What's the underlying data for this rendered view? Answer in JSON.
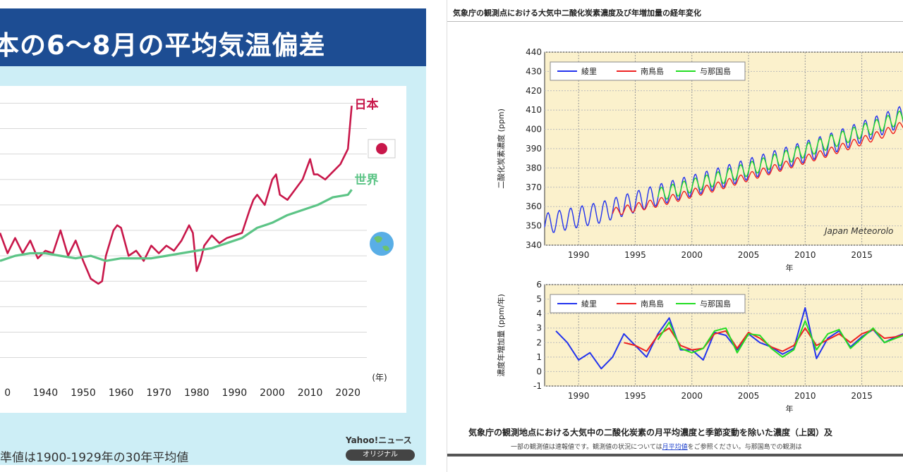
{
  "left": {
    "title": "本の6〜8月の平均気温偏差",
    "footnote": "準値は1900-1929年の30年平均値",
    "logo": "Yahoo!ニュース",
    "badge": "オリジナル",
    "colors": {
      "header_bg": "#1d4d93",
      "panel_bg": "#cdeef6",
      "japan": "#c8174a",
      "world": "#5cc486"
    }
  },
  "right": {
    "title": "気象庁の観測点における大気中二酸化炭素濃度及び年増加量の経年変化",
    "caption": "気象庁の観測地点における大気中の二酸化炭素の月平均濃度と季節変動を除いた濃度（上図）及",
    "note_before": "一部の観測値は速報値です。観測値の状況については",
    "note_link": "月平均値",
    "note_after": "をご参照ください。与那国島での観測は",
    "colors": {
      "plot_bg": "#fbf1cc",
      "ryori": "#2233ee",
      "minamitorishima": "#ee2222",
      "yonagunijima": "#22dd22"
    }
  },
  "chart_data": [
    {
      "type": "line",
      "title": "本の6〜8月の平均気温偏差",
      "xlabel": "(年)",
      "ylabel": "",
      "xlim": [
        1928,
        2025
      ],
      "ylim": [
        -2.2,
        3.2
      ],
      "xticks": [
        "0",
        "1940",
        "1950",
        "1960",
        "1970",
        "1980",
        "1990",
        "2000",
        "2010",
        "2020"
      ],
      "grid": true,
      "legend_position": "right",
      "series": [
        {
          "name": "日本",
          "x": [
            1928,
            1930,
            1932,
            1934,
            1936,
            1938,
            1940,
            1942,
            1944,
            1946,
            1948,
            1950,
            1952,
            1954,
            1955,
            1956,
            1958,
            1959,
            1960,
            1962,
            1964,
            1966,
            1968,
            1970,
            1972,
            1974,
            1976,
            1978,
            1979,
            1980,
            1981,
            1982,
            1984,
            1986,
            1988,
            1990,
            1992,
            1994,
            1995,
            1996,
            1998,
            2000,
            2001,
            2002,
            2004,
            2006,
            2008,
            2010,
            2011,
            2012,
            2014,
            2016,
            2018,
            2020,
            2021
          ],
          "y": [
            0.45,
            0.05,
            0.35,
            0.05,
            0.3,
            -0.05,
            0.1,
            0.05,
            0.5,
            0.0,
            0.3,
            -0.1,
            -0.45,
            -0.55,
            -0.5,
            0.0,
            0.5,
            0.6,
            0.55,
            0.0,
            0.1,
            -0.1,
            0.2,
            0.05,
            0.2,
            0.1,
            0.3,
            0.6,
            0.45,
            -0.3,
            -0.1,
            0.2,
            0.4,
            0.25,
            0.35,
            0.4,
            0.45,
            0.9,
            1.1,
            1.2,
            1.0,
            1.5,
            1.6,
            1.2,
            1.1,
            1.3,
            1.5,
            1.9,
            1.6,
            1.6,
            1.5,
            1.65,
            1.8,
            2.1,
            2.95
          ]
        },
        {
          "name": "世界",
          "x": [
            1928,
            1932,
            1936,
            1940,
            1944,
            1948,
            1952,
            1956,
            1960,
            1964,
            1968,
            1972,
            1976,
            1980,
            1984,
            1988,
            1992,
            1996,
            2000,
            2004,
            2008,
            2012,
            2016,
            2020,
            2021
          ],
          "y": [
            -0.1,
            0.0,
            0.05,
            0.05,
            0.0,
            -0.05,
            0.0,
            -0.1,
            -0.05,
            -0.05,
            -0.05,
            0.0,
            0.05,
            0.1,
            0.15,
            0.25,
            0.35,
            0.55,
            0.65,
            0.8,
            0.9,
            1.0,
            1.15,
            1.2,
            1.3
          ]
        }
      ]
    },
    {
      "type": "line",
      "title": "",
      "ylabel": "二酸化炭素濃度 (ppm)",
      "xlabel": "年",
      "xlim": [
        1987,
        2022
      ],
      "ylim": [
        340,
        440
      ],
      "yticks": [
        340,
        350,
        360,
        370,
        380,
        390,
        400,
        410,
        420,
        430,
        440
      ],
      "xticks": [
        1990,
        1995,
        2000,
        2005,
        2010,
        2015
      ],
      "grid": true,
      "legend_position": "top-left",
      "annotation": "Japan Meteorolo",
      "series": [
        {
          "name": "綾里",
          "x": [
            1987,
            1992,
            1997,
            2002,
            2007,
            2012,
            2017,
            2021
          ],
          "y": [
            351,
            357,
            366,
            374,
            383,
            392,
            403,
            413
          ]
        },
        {
          "name": "南鳥島",
          "x": [
            1993,
            1997,
            2002,
            2007,
            2012,
            2017,
            2021
          ],
          "y": [
            357,
            362,
            370,
            379,
            388,
            398,
            408
          ]
        },
        {
          "name": "与那国島",
          "x": [
            1997,
            2002,
            2007,
            2012,
            2017,
            2021
          ],
          "y": [
            366,
            374,
            383,
            393,
            403,
            412
          ]
        }
      ]
    },
    {
      "type": "line",
      "title": "",
      "ylabel": "濃度年増加量 (ppm/年)",
      "xlabel": "年",
      "xlim": [
        1987,
        2022
      ],
      "ylim": [
        -1,
        6
      ],
      "yticks": [
        -1,
        0,
        1,
        2,
        3,
        4,
        5,
        6
      ],
      "xticks": [
        1990,
        1995,
        2000,
        2005,
        2010,
        2015
      ],
      "grid": true,
      "legend_position": "top-left",
      "series": [
        {
          "name": "綾里",
          "x": [
            1988,
            1989,
            1990,
            1991,
            1992,
            1993,
            1994,
            1995,
            1996,
            1997,
            1998,
            1999,
            2000,
            2001,
            2002,
            2003,
            2004,
            2005,
            2006,
            2007,
            2008,
            2009,
            2010,
            2011,
            2012,
            2013,
            2014,
            2015,
            2016,
            2017,
            2018,
            2019,
            2020
          ],
          "y": [
            2.8,
            2.0,
            0.8,
            1.3,
            0.2,
            1.0,
            2.6,
            1.8,
            1.0,
            2.6,
            3.7,
            1.5,
            1.5,
            0.8,
            2.7,
            2.5,
            1.5,
            2.6,
            2.0,
            1.7,
            1.2,
            1.6,
            4.4,
            0.9,
            2.3,
            2.8,
            1.7,
            2.4,
            2.9,
            2.0,
            2.4,
            2.7,
            2.7
          ]
        },
        {
          "name": "南鳥島",
          "x": [
            1994,
            1995,
            1996,
            1997,
            1998,
            1999,
            2000,
            2001,
            2002,
            2003,
            2004,
            2005,
            2006,
            2007,
            2008,
            2009,
            2010,
            2011,
            2012,
            2013,
            2014,
            2015,
            2016,
            2017,
            2018,
            2019,
            2020
          ],
          "y": [
            2.0,
            1.8,
            1.4,
            2.5,
            3.0,
            1.8,
            1.5,
            1.6,
            2.6,
            2.8,
            1.6,
            2.7,
            2.3,
            1.7,
            1.4,
            1.8,
            3.0,
            1.8,
            2.2,
            2.6,
            2.0,
            2.6,
            2.9,
            2.3,
            2.4,
            2.6,
            2.7
          ]
        },
        {
          "name": "与那国島",
          "x": [
            1997,
            1998,
            1999,
            2000,
            2001,
            2002,
            2003,
            2004,
            2005,
            2006,
            2007,
            2008,
            2009,
            2010,
            2011,
            2012,
            2013,
            2014,
            2015,
            2016,
            2017,
            2018,
            2019,
            2020
          ],
          "y": [
            2.2,
            3.4,
            1.6,
            1.3,
            1.6,
            2.8,
            3.0,
            1.3,
            2.6,
            2.5,
            1.6,
            1.0,
            1.5,
            3.5,
            1.5,
            2.6,
            2.9,
            1.6,
            2.3,
            3.0,
            2.0,
            2.3,
            2.6,
            2.8
          ]
        }
      ]
    }
  ]
}
